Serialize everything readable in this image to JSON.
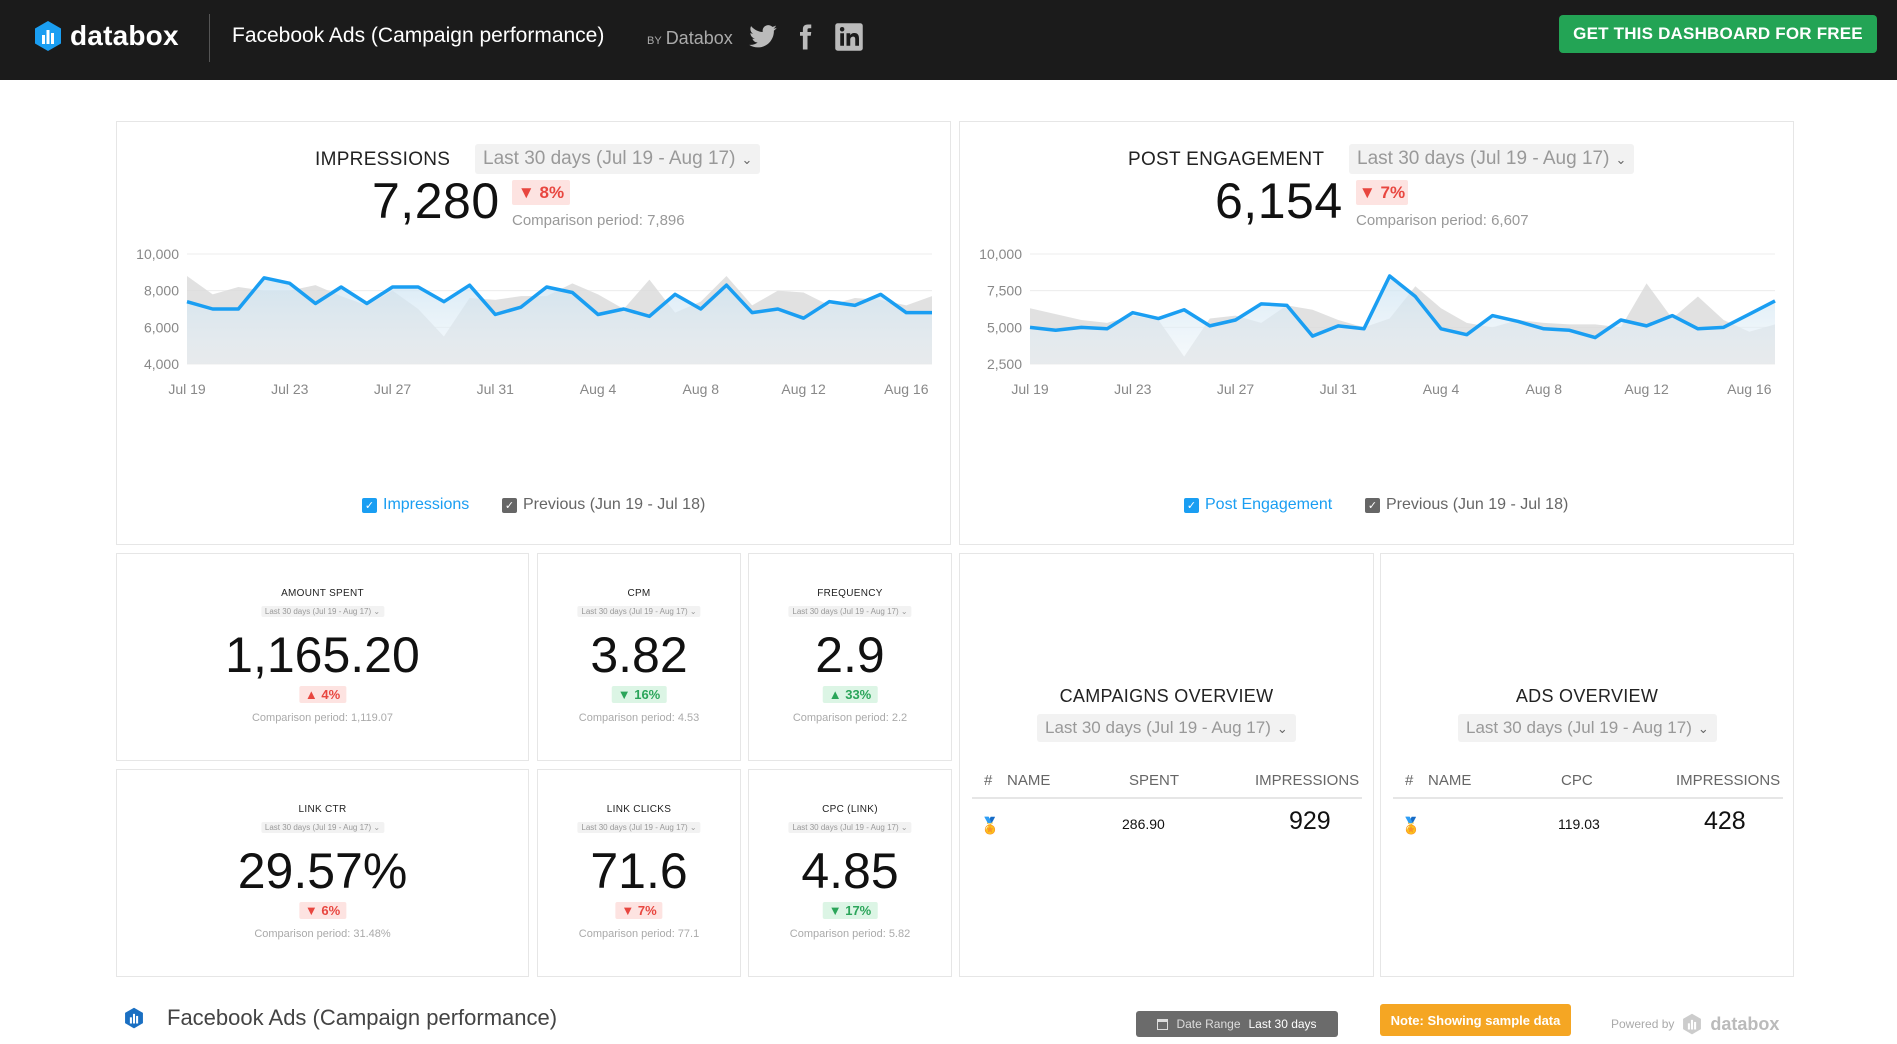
{
  "header": {
    "logo_text": "databox",
    "dashboard_title": "Facebook Ads (Campaign performance)",
    "by_prefix": "BY",
    "by_name": "Databox",
    "social": [
      "twitter-icon",
      "facebook-icon",
      "linkedin-icon"
    ],
    "cta_label": "GET THIS DASHBOARD FOR FREE",
    "colors": {
      "background": "#1b1b1b",
      "cta": "#23a455"
    }
  },
  "impressions": {
    "title": "IMPRESSIONS",
    "range": "Last 30 days (Jul 19 - Aug 17)",
    "value": "7,280",
    "change": "8%",
    "direction": "down",
    "comparison": "Comparison period: 7,896",
    "legend_current": "Impressions",
    "legend_previous": "Previous (Jun 19 - Jul 18)",
    "y_ticks": [
      "10,000",
      "8,000",
      "6,000",
      "4,000"
    ],
    "x_ticks": [
      "Jul 19",
      "Jul 23",
      "Jul 27",
      "Jul 31",
      "Aug 4",
      "Aug 8",
      "Aug 12",
      "Aug 16"
    ]
  },
  "post_engagement": {
    "title": "POST ENGAGEMENT",
    "range": "Last 30 days (Jul 19 - Aug 17)",
    "value": "6,154",
    "change": "7%",
    "direction": "down",
    "comparison": "Comparison period: 6,607",
    "legend_current": "Post Engagement",
    "legend_previous": "Previous (Jun 19 - Jul 18)",
    "y_ticks": [
      "10,000",
      "7,500",
      "5,000",
      "2,500"
    ],
    "x_ticks": [
      "Jul 19",
      "Jul 23",
      "Jul 27",
      "Jul 31",
      "Aug 4",
      "Aug 8",
      "Aug 12",
      "Aug 16"
    ]
  },
  "chart_data": [
    {
      "type": "area",
      "title": "IMPRESSIONS",
      "ylim": [
        4000,
        10000
      ],
      "x": [
        "Jul 19",
        "Jul 20",
        "Jul 21",
        "Jul 22",
        "Jul 23",
        "Jul 24",
        "Jul 25",
        "Jul 26",
        "Jul 27",
        "Jul 28",
        "Jul 29",
        "Jul 30",
        "Jul 31",
        "Aug 1",
        "Aug 2",
        "Aug 3",
        "Aug 4",
        "Aug 5",
        "Aug 6",
        "Aug 7",
        "Aug 8",
        "Aug 9",
        "Aug 10",
        "Aug 11",
        "Aug 12",
        "Aug 13",
        "Aug 14",
        "Aug 15",
        "Aug 16",
        "Aug 17"
      ],
      "series": [
        {
          "name": "Impressions",
          "color": "#1a9ef2",
          "values": [
            7400,
            7000,
            7000,
            8700,
            8400,
            7300,
            8200,
            7300,
            8200,
            8200,
            7400,
            8300,
            6700,
            7100,
            8200,
            7900,
            6700,
            7000,
            6600,
            7800,
            7000,
            8300,
            6800,
            7000,
            6500,
            7400,
            7200,
            7800,
            6800,
            6800
          ]
        },
        {
          "name": "Previous (Jun 19 - Jul 18)",
          "color": "#cfcfcf",
          "values": [
            8800,
            7800,
            8200,
            8000,
            8000,
            8300,
            7700,
            7200,
            8000,
            7000,
            5500,
            7600,
            7500,
            7700,
            7700,
            8400,
            7800,
            7000,
            8600,
            6800,
            7400,
            8800,
            7200,
            8000,
            7900,
            7200,
            7600,
            7500,
            7200,
            7700
          ]
        }
      ]
    },
    {
      "type": "area",
      "title": "POST ENGAGEMENT",
      "ylim": [
        2500,
        10000
      ],
      "x": [
        "Jul 19",
        "Jul 20",
        "Jul 21",
        "Jul 22",
        "Jul 23",
        "Jul 24",
        "Jul 25",
        "Jul 26",
        "Jul 27",
        "Jul 28",
        "Jul 29",
        "Jul 30",
        "Jul 31",
        "Aug 1",
        "Aug 2",
        "Aug 3",
        "Aug 4",
        "Aug 5",
        "Aug 6",
        "Aug 7",
        "Aug 8",
        "Aug 9",
        "Aug 10",
        "Aug 11",
        "Aug 12",
        "Aug 13",
        "Aug 14",
        "Aug 15",
        "Aug 16",
        "Aug 17"
      ],
      "series": [
        {
          "name": "Post Engagement",
          "color": "#1a9ef2",
          "values": [
            5000,
            4800,
            5000,
            4900,
            6000,
            5600,
            6200,
            5100,
            5500,
            6600,
            6500,
            4400,
            5100,
            4900,
            8500,
            7100,
            4900,
            4500,
            5800,
            5400,
            4900,
            4800,
            4300,
            5500,
            5100,
            5800,
            4900,
            5000,
            5900,
            6800
          ]
        },
        {
          "name": "Previous (Jun 19 - Jul 18)",
          "color": "#cfcfcf",
          "values": [
            6300,
            5900,
            5500,
            5300,
            5800,
            5500,
            3000,
            5600,
            5800,
            5300,
            6500,
            6200,
            5500,
            5000,
            5600,
            7800,
            6300,
            5300,
            5000,
            5500,
            5300,
            5200,
            5200,
            5000,
            8000,
            5600,
            7100,
            5500,
            4700,
            5200
          ]
        }
      ]
    }
  ],
  "metrics": [
    {
      "id": "amount-spent",
      "title": "AMOUNT SPENT",
      "range": "Last 30 days (Jul 19 - Aug 17)",
      "value": "1,165.20",
      "change": "4%",
      "direction": "up",
      "tone": "bad",
      "comparison": "Comparison period: 1,119.07"
    },
    {
      "id": "cpm",
      "title": "CPM",
      "range": "Last 30 days (Jul 19 - Aug 17)",
      "value": "3.82",
      "change": "16%",
      "direction": "down",
      "tone": "good",
      "comparison": "Comparison period: 4.53"
    },
    {
      "id": "frequency",
      "title": "FREQUENCY",
      "range": "Last 30 days (Jul 19 - Aug 17)",
      "value": "2.9",
      "change": "33%",
      "direction": "up",
      "tone": "good",
      "comparison": "Comparison period: 2.2"
    },
    {
      "id": "link-ctr",
      "title": "LINK CTR",
      "range": "Last 30 days (Jul 19 - Aug 17)",
      "value": "29.57%",
      "change": "6%",
      "direction": "down",
      "tone": "bad",
      "comparison": "Comparison period: 31.48%"
    },
    {
      "id": "link-clicks",
      "title": "LINK CLICKS",
      "range": "Last 30 days (Jul 19 - Aug 17)",
      "value": "71.6",
      "change": "7%",
      "direction": "down",
      "tone": "bad",
      "comparison": "Comparison period: 77.1"
    },
    {
      "id": "cpc-link",
      "title": "CPC (LINK)",
      "range": "Last 30 days (Jul 19 - Aug 17)",
      "value": "4.85",
      "change": "17%",
      "direction": "down",
      "tone": "good",
      "comparison": "Comparison period: 5.82"
    }
  ],
  "campaigns": {
    "title": "CAMPAIGNS OVERVIEW",
    "range": "Last 30 days (Jul 19 - Aug 17)",
    "columns": [
      "#",
      "NAME",
      "SPENT",
      "IMPRESSIONS"
    ],
    "rows": [
      {
        "spent": "286.90",
        "impressions": "929"
      }
    ]
  },
  "ads": {
    "title": "ADS OVERVIEW",
    "range": "Last 30 days (Jul 19 - Aug 17)",
    "columns": [
      "#",
      "NAME",
      "CPC",
      "IMPRESSIONS"
    ],
    "rows": [
      {
        "cpc": "119.03",
        "impressions": "428"
      }
    ]
  },
  "footer": {
    "title": "Facebook Ads (Campaign performance)",
    "date_range_label": "Date Range",
    "date_range_value": "Last 30 days",
    "note": "Note: Showing sample data",
    "powered_by": "Powered by",
    "powered_brand": "databox"
  }
}
